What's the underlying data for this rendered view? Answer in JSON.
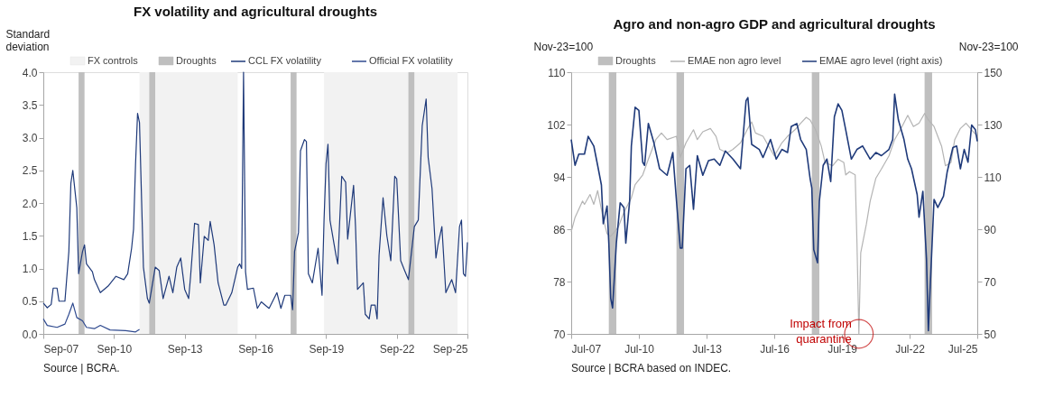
{
  "chart_data": [
    {
      "type": "line",
      "title": "FX volatility and agricultural droughts",
      "ylabel": "Standard deviation",
      "legend": "top",
      "grid": false,
      "xlim": [
        "2007-09",
        "2025-09"
      ],
      "xticks": [
        {
          "value": "2007-09",
          "label": "Sep-07"
        },
        {
          "value": "2010-09",
          "label": "Sep-10"
        },
        {
          "value": "2013-09",
          "label": "Sep-13"
        },
        {
          "value": "2016-09",
          "label": "Sep-16"
        },
        {
          "value": "2019-09",
          "label": "Sep-19"
        },
        {
          "value": "2022-09",
          "label": "Sep-22"
        },
        {
          "value": "2025-09",
          "label": "Sep-25"
        }
      ],
      "ylim": [
        0,
        4
      ],
      "yticks": [
        {
          "value": 0,
          "label": "0.0"
        },
        {
          "value": 0.5,
          "label": "0.5"
        },
        {
          "value": 1,
          "label": "1.0"
        },
        {
          "value": 1.5,
          "label": "1.5"
        },
        {
          "value": 2,
          "label": "2.0"
        },
        {
          "value": 2.5,
          "label": "2.5"
        },
        {
          "value": 3,
          "label": "3.0"
        },
        {
          "value": 3.5,
          "label": "3.5"
        },
        {
          "value": 4,
          "label": "4.0"
        }
      ],
      "bands": [
        {
          "axis": "x",
          "from": "2011-10",
          "to": "2015-12",
          "label": "FX controls",
          "color": "#f2f2f2"
        },
        {
          "axis": "x",
          "from": "2019-08",
          "to": "2025-04",
          "color": "#f2f2f2"
        },
        {
          "axis": "x",
          "from": "2009-03",
          "to": "2009-06",
          "label": "Droughts",
          "color": "#bfbfbf"
        },
        {
          "axis": "x",
          "from": "2012-03",
          "to": "2012-06",
          "color": "#bfbfbf"
        },
        {
          "axis": "x",
          "from": "2018-03",
          "to": "2018-06",
          "color": "#bfbfbf"
        },
        {
          "axis": "x",
          "from": "2023-03",
          "to": "2023-06",
          "color": "#bfbfbf"
        }
      ],
      "series": [
        {
          "name": "CCL FX volatility",
          "color": "#1f3a7a",
          "x": [
            "2007-09",
            "2007-11",
            "2008-01",
            "2008-02",
            "2008-04",
            "2008-05",
            "2008-08",
            "2008-10",
            "2008-11",
            "2008-12",
            "2009-02",
            "2009-03",
            "2009-05",
            "2009-06",
            "2009-07",
            "2009-10",
            "2009-11",
            "2010-02",
            "2010-06",
            "2010-10",
            "2011-02",
            "2011-04",
            "2011-06",
            "2011-07",
            "2011-08",
            "2011-09",
            "2011-10",
            "2011-12",
            "2012-02",
            "2012-03",
            "2012-06",
            "2012-08",
            "2012-10",
            "2013-01",
            "2013-03",
            "2013-05",
            "2013-07",
            "2013-09",
            "2013-11",
            "2013-12",
            "2014-02",
            "2014-04",
            "2014-05",
            "2014-07",
            "2014-09",
            "2014-10",
            "2014-12",
            "2015-02",
            "2015-05",
            "2015-06",
            "2015-09",
            "2015-12",
            "2016-01",
            "2016-02",
            "2016-03",
            "2016-04",
            "2016-05",
            "2016-08",
            "2016-10",
            "2016-12",
            "2017-04",
            "2017-08",
            "2017-10",
            "2017-12",
            "2018-03",
            "2018-04",
            "2018-05",
            "2018-07",
            "2018-08",
            "2018-10",
            "2018-11",
            "2018-12",
            "2019-02",
            "2019-05",
            "2019-07",
            "2019-08",
            "2019-09",
            "2019-10",
            "2019-11",
            "2020-02",
            "2020-03",
            "2020-05",
            "2020-07",
            "2020-08",
            "2020-11",
            "2020-12",
            "2021-01",
            "2021-04",
            "2021-05",
            "2021-07",
            "2021-08",
            "2021-10",
            "2021-11",
            "2021-12",
            "2022-02",
            "2022-04",
            "2022-06",
            "2022-08",
            "2022-09",
            "2022-11",
            "2023-01",
            "2023-03",
            "2023-06",
            "2023-08",
            "2023-10",
            "2023-12",
            "2024-01",
            "2024-03",
            "2024-05",
            "2024-06",
            "2024-08",
            "2024-10",
            "2025-01",
            "2025-03",
            "2025-05",
            "2025-06",
            "2025-07",
            "2025-08",
            "2025-09"
          ],
          "values": [
            0.47,
            0.4,
            0.45,
            0.7,
            0.7,
            0.5,
            0.5,
            1.26,
            2.3,
            2.5,
            1.93,
            0.92,
            1.26,
            1.36,
            1.07,
            0.95,
            0.83,
            0.63,
            0.73,
            0.88,
            0.83,
            0.92,
            1.31,
            1.6,
            2.6,
            3.37,
            3.23,
            1.02,
            0.54,
            0.47,
            1.02,
            0.97,
            0.54,
            0.88,
            0.63,
            1.02,
            1.16,
            0.68,
            0.54,
            0.88,
            1.69,
            1.67,
            0.78,
            1.49,
            1.43,
            1.72,
            1.36,
            0.78,
            0.44,
            0.44,
            0.63,
            1.02,
            1.07,
            1.0,
            4.0,
            0.95,
            0.68,
            0.7,
            0.39,
            0.49,
            0.39,
            0.63,
            0.39,
            0.59,
            0.59,
            0.37,
            1.26,
            1.55,
            2.8,
            2.97,
            2.94,
            0.92,
            0.78,
            1.31,
            0.59,
            1.74,
            2.6,
            2.9,
            1.74,
            1.21,
            1.07,
            2.41,
            2.32,
            1.45,
            2.27,
            1.64,
            0.68,
            0.78,
            0.3,
            0.23,
            0.44,
            0.44,
            0.23,
            1.2,
            2.08,
            1.5,
            1.12,
            2.41,
            2.37,
            1.12,
            0.97,
            0.83,
            1.64,
            1.74,
            3.18,
            3.59,
            2.7,
            2.22,
            1.16,
            1.36,
            1.64,
            0.63,
            0.83,
            0.63,
            1.64,
            1.74,
            0.92,
            0.88,
            1.4
          ]
        },
        {
          "name": "Official FX volatility",
          "color": "#2f4a8f",
          "x": [
            "2007-09",
            "2007-11",
            "2008-04",
            "2008-08",
            "2008-10",
            "2008-12",
            "2009-02",
            "2009-05",
            "2009-07",
            "2009-11",
            "2010-02",
            "2010-07",
            "2011-03",
            "2011-08",
            "2011-10"
          ],
          "values": [
            0.23,
            0.13,
            0.1,
            0.15,
            0.3,
            0.47,
            0.25,
            0.2,
            0.1,
            0.08,
            0.13,
            0.06,
            0.05,
            0.03,
            0.07
          ]
        }
      ],
      "annotations": [
        "Source | BCRA."
      ]
    },
    {
      "type": "line",
      "title": "Agro and non-agro GDP and agricultural droughts",
      "ylabel": "Nov-23=100",
      "y2label": "Nov-23=100",
      "legend": "top",
      "grid": false,
      "xlim": [
        "2007-07",
        "2025-07"
      ],
      "xticks": [
        {
          "value": "2007-07",
          "label": "Jul-07"
        },
        {
          "value": "2010-07",
          "label": "Jul-10"
        },
        {
          "value": "2013-07",
          "label": "Jul-13"
        },
        {
          "value": "2016-07",
          "label": "Jul-16"
        },
        {
          "value": "2019-07",
          "label": "Jul-19"
        },
        {
          "value": "2022-07",
          "label": "Jul-22"
        },
        {
          "value": "2025-07",
          "label": "Jul-25"
        }
      ],
      "ylim": [
        70,
        110
      ],
      "yticks": [
        70,
        78,
        86,
        94,
        102,
        110
      ],
      "y2lim": [
        50,
        150
      ],
      "y2ticks": [
        50,
        70,
        90,
        110,
        130,
        150
      ],
      "bands": [
        {
          "axis": "x",
          "from": "2009-03",
          "to": "2009-07",
          "label": "Droughts",
          "color": "#bfbfbf"
        },
        {
          "axis": "x",
          "from": "2012-03",
          "to": "2012-07",
          "color": "#bfbfbf"
        },
        {
          "axis": "x",
          "from": "2018-03",
          "to": "2018-07",
          "color": "#bfbfbf"
        },
        {
          "axis": "x",
          "from": "2023-03",
          "to": "2023-07",
          "color": "#bfbfbf"
        }
      ],
      "series": [
        {
          "name": "EMAE non agro level",
          "color": "#b4b4b4",
          "x": [
            "2007-07",
            "2007-09",
            "2008-01",
            "2008-02",
            "2008-05",
            "2008-07",
            "2008-09",
            "2008-12",
            "2009-02",
            "2009-04",
            "2009-08",
            "2009-11",
            "2010-03",
            "2010-05",
            "2010-09",
            "2010-12",
            "2011-04",
            "2011-07",
            "2011-10",
            "2012-03",
            "2012-05",
            "2012-08",
            "2012-12",
            "2013-02",
            "2013-05",
            "2013-09",
            "2013-12",
            "2014-02",
            "2014-06",
            "2014-09",
            "2015-01",
            "2015-05",
            "2015-07",
            "2015-09",
            "2016-01",
            "2016-04",
            "2016-07",
            "2016-11",
            "2017-02",
            "2017-06",
            "2017-09",
            "2017-12",
            "2018-02",
            "2018-05",
            "2018-08",
            "2018-10",
            "2019-02",
            "2019-05",
            "2019-08",
            "2019-09",
            "2019-11",
            "2020-02",
            "2020-03",
            "2020-04",
            "2020-05",
            "2020-08",
            "2020-10",
            "2021-01",
            "2021-04",
            "2021-08",
            "2021-11",
            "2022-03",
            "2022-06",
            "2022-09",
            "2022-12",
            "2023-03",
            "2023-05",
            "2023-08",
            "2023-12",
            "2024-02",
            "2024-05",
            "2024-07",
            "2024-10",
            "2025-01",
            "2025-04",
            "2025-07"
          ],
          "values": [
            85.6,
            87.8,
            90.3,
            89.8,
            91.3,
            89.8,
            91.9,
            87.6,
            85.3,
            84.9,
            86.3,
            88.6,
            90.8,
            92.8,
            94.3,
            96.7,
            99.7,
            100.7,
            99.7,
            100.2,
            97.0,
            99.2,
            101.2,
            99.7,
            100.9,
            101.4,
            100.2,
            98.2,
            97.7,
            98.2,
            99.2,
            101.4,
            102.4,
            100.7,
            100.2,
            98.7,
            97.2,
            99.2,
            100.2,
            101.2,
            102.2,
            103.1,
            102.7,
            101.2,
            98.7,
            96.2,
            95.7,
            96.7,
            96.2,
            94.3,
            94.8,
            94.3,
            83.9,
            70.0,
            82.4,
            86.8,
            90.3,
            93.8,
            95.2,
            97.2,
            99.7,
            101.7,
            103.4,
            101.7,
            102.2,
            103.7,
            102.7,
            101.7,
            98.7,
            95.7,
            96.2,
            99.7,
            101.4,
            102.2,
            101.2,
            100.2
          ]
        },
        {
          "name": "EMAE agro level (right axis)",
          "color": "#1f3a7a",
          "axis": "y2",
          "x": [
            "2007-07",
            "2007-09",
            "2007-11",
            "2008-02",
            "2008-04",
            "2008-07",
            "2008-09",
            "2008-11",
            "2008-12",
            "2009-02",
            "2009-03",
            "2009-04",
            "2009-05",
            "2009-07",
            "2009-09",
            "2009-11",
            "2009-12",
            "2010-02",
            "2010-03",
            "2010-05",
            "2010-07",
            "2010-09",
            "2010-10",
            "2010-12",
            "2011-03",
            "2011-06",
            "2011-10",
            "2012-01",
            "2012-03",
            "2012-05",
            "2012-06",
            "2012-08",
            "2012-10",
            "2012-12",
            "2013-02",
            "2013-05",
            "2013-08",
            "2013-11",
            "2014-02",
            "2014-05",
            "2014-09",
            "2015-01",
            "2015-04",
            "2015-05",
            "2015-07",
            "2015-11",
            "2016-01",
            "2016-05",
            "2016-08",
            "2016-11",
            "2017-02",
            "2017-04",
            "2017-07",
            "2017-09",
            "2017-12",
            "2018-02",
            "2018-03",
            "2018-04",
            "2018-06",
            "2018-07",
            "2018-09",
            "2018-11",
            "2019-01",
            "2019-03",
            "2019-05",
            "2019-07",
            "2019-09",
            "2019-12",
            "2020-03",
            "2020-06",
            "2020-10",
            "2021-01",
            "2021-04",
            "2021-08",
            "2021-10",
            "2021-11",
            "2022-01",
            "2022-04",
            "2022-06",
            "2022-08",
            "2022-11",
            "2022-12",
            "2023-02",
            "2023-04",
            "2023-05",
            "2023-06",
            "2023-08",
            "2023-10",
            "2024-01",
            "2024-03",
            "2024-06",
            "2024-08",
            "2024-10",
            "2024-12",
            "2025-02",
            "2025-04",
            "2025-06",
            "2025-07"
          ],
          "values": [
            124.3,
            114.4,
            118.7,
            118.7,
            125.5,
            121.8,
            114.4,
            106.9,
            92.1,
            98.9,
            84.7,
            63.6,
            59.9,
            84.7,
            100.1,
            98.3,
            84.7,
            100.7,
            121.8,
            136.6,
            135.4,
            115.6,
            114.4,
            130.4,
            123.0,
            113.1,
            110.6,
            119.3,
            100.7,
            82.8,
            82.8,
            113.1,
            114.4,
            97.6,
            118.1,
            110.6,
            116.2,
            116.8,
            114.4,
            119.9,
            116.8,
            113.1,
            139.1,
            140.3,
            122.4,
            120.5,
            117.4,
            124.3,
            116.8,
            120.5,
            119.3,
            129.2,
            130.4,
            124.3,
            120.5,
            109.4,
            105.7,
            82.2,
            77.2,
            100.7,
            114.4,
            116.8,
            108.2,
            132.9,
            137.9,
            135.4,
            128.0,
            116.8,
            120.5,
            121.8,
            116.8,
            119.3,
            118.1,
            120.5,
            124.3,
            141.6,
            131.7,
            124.3,
            116.8,
            113.1,
            103.2,
            94.6,
            104.5,
            78.5,
            51.2,
            68.6,
            101.4,
            98.3,
            102.6,
            111.9,
            121.2,
            121.8,
            113.1,
            120.5,
            115.6,
            129.8,
            128.0,
            123.6
          ]
        }
      ],
      "annotations": [
        {
          "text": "Impact from quarantine",
          "x": "2020-04",
          "y": 70
        },
        "Source | BCRA based on INDEC."
      ]
    }
  ]
}
